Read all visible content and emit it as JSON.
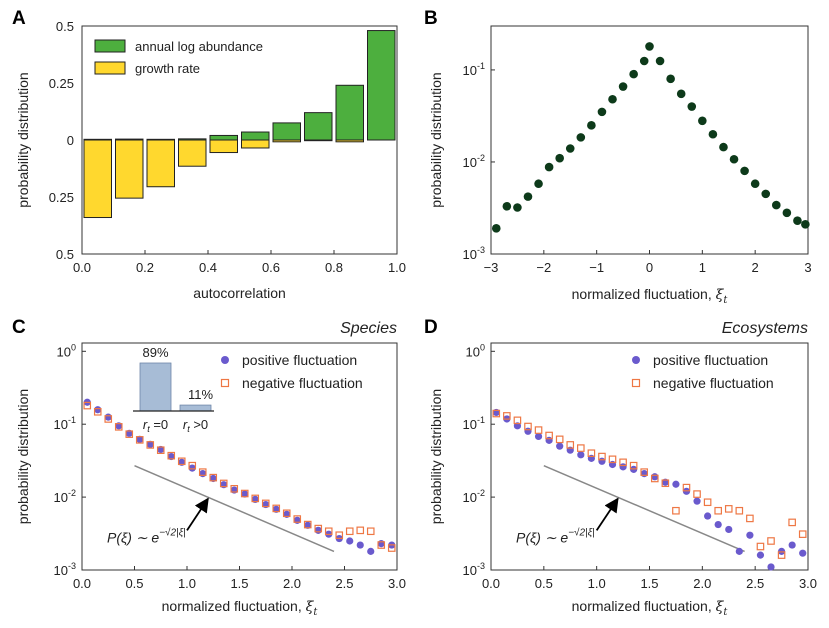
{
  "chart_data": [
    {
      "panel": "A",
      "type": "bar",
      "title": "",
      "xlabel": "autocorrelation",
      "ylabel": "probability distribution",
      "xlim": [
        0,
        1
      ],
      "ylim": [
        -0.5,
        0.5
      ],
      "xticks": [
        "0.0",
        "0.2",
        "0.4",
        "0.6",
        "0.8",
        "1.0"
      ],
      "yticks": [
        {
          "value": 0.5,
          "label": "0.5"
        },
        {
          "value": 0.25,
          "label": "0.25"
        },
        {
          "value": 0,
          "label": "0"
        },
        {
          "value": -0.25,
          "label": "0.25"
        },
        {
          "value": -0.5,
          "label": "0.5"
        }
      ],
      "bin_centers": [
        0.05,
        0.15,
        0.25,
        0.35,
        0.45,
        0.55,
        0.65,
        0.75,
        0.85,
        0.95
      ],
      "legend_position": "top-left",
      "series": [
        {
          "name": "annual log abundance",
          "color": "#4daf3e",
          "direction": "up",
          "values": [
            0.003,
            0.004,
            0.003,
            0.005,
            0.02,
            0.035,
            0.075,
            0.12,
            0.24,
            0.48
          ]
        },
        {
          "name": "growth rate",
          "color": "#ffd82e",
          "direction": "down",
          "values": [
            0.34,
            0.255,
            0.205,
            0.115,
            0.055,
            0.035,
            0.008,
            0.003,
            0.008,
            0.0
          ]
        }
      ]
    },
    {
      "panel": "B",
      "type": "scatter",
      "xlabel": "normalized fluctuation, ξ_t",
      "ylabel": "probability distribution",
      "yscale": "log",
      "xlim": [
        -3,
        3
      ],
      "ylim": [
        0.001,
        0.3
      ],
      "xticks": [
        "−3",
        "−2",
        "−1",
        "0",
        "1",
        "2",
        "3"
      ],
      "yticks": [
        {
          "value": 0.001,
          "base": "10",
          "exp": "-3"
        },
        {
          "value": 0.01,
          "base": "10",
          "exp": "-2"
        },
        {
          "value": 0.1,
          "base": "10",
          "exp": "-1"
        }
      ],
      "color": "#0d3a1a",
      "x": [
        -2.9,
        -2.7,
        -2.5,
        -2.3,
        -2.1,
        -1.9,
        -1.7,
        -1.5,
        -1.3,
        -1.1,
        -0.9,
        -0.7,
        -0.5,
        -0.3,
        -0.1,
        0.0,
        0.2,
        0.4,
        0.6,
        0.8,
        1.0,
        1.2,
        1.4,
        1.6,
        1.8,
        2.0,
        2.2,
        2.4,
        2.6,
        2.8,
        2.95
      ],
      "y": [
        0.0019,
        0.0033,
        0.0032,
        0.0042,
        0.0058,
        0.0088,
        0.011,
        0.014,
        0.0185,
        0.025,
        0.035,
        0.048,
        0.066,
        0.09,
        0.125,
        0.18,
        0.125,
        0.08,
        0.055,
        0.04,
        0.028,
        0.02,
        0.0145,
        0.0107,
        0.008,
        0.0058,
        0.0045,
        0.0034,
        0.0028,
        0.0023,
        0.0021
      ]
    },
    {
      "panel": "C",
      "type": "scatter",
      "title": "Species",
      "xlabel": "normalized fluctuation, ξ_t",
      "ylabel": "probability distribution",
      "yscale": "log",
      "xlim": [
        0,
        3
      ],
      "ylim": [
        0.001,
        1.3
      ],
      "xticks": [
        "0.0",
        "0.5",
        "1.0",
        "1.5",
        "2.0",
        "2.5",
        "3.0"
      ],
      "yticks": [
        {
          "value": 0.001,
          "base": "10",
          "exp": "-3"
        },
        {
          "value": 0.01,
          "base": "10",
          "exp": "-2"
        },
        {
          "value": 0.1,
          "base": "10",
          "exp": "-1"
        },
        {
          "value": 1,
          "base": "10",
          "exp": "0"
        }
      ],
      "legend_position": "top-right",
      "series": [
        {
          "name": "positive fluctuation",
          "color": "#6a5acd",
          "marker": "circle",
          "x": [
            0.05,
            0.15,
            0.25,
            0.35,
            0.45,
            0.55,
            0.65,
            0.75,
            0.85,
            0.95,
            1.05,
            1.15,
            1.25,
            1.35,
            1.45,
            1.55,
            1.65,
            1.75,
            1.85,
            1.95,
            2.05,
            2.15,
            2.25,
            2.35,
            2.45,
            2.55,
            2.65,
            2.75,
            2.85,
            2.95
          ],
          "y": [
            0.2,
            0.158,
            0.125,
            0.095,
            0.075,
            0.062,
            0.053,
            0.045,
            0.036,
            0.03,
            0.025,
            0.021,
            0.018,
            0.0148,
            0.0125,
            0.011,
            0.0093,
            0.0079,
            0.0068,
            0.0058,
            0.0048,
            0.0041,
            0.0035,
            0.0031,
            0.0027,
            0.0025,
            0.0022,
            0.0018,
            0.0023,
            0.0022
          ]
        },
        {
          "name": "negative fluctuation",
          "color": "#ee7744",
          "marker": "square",
          "x": [
            0.05,
            0.15,
            0.25,
            0.35,
            0.45,
            0.55,
            0.65,
            0.75,
            0.85,
            0.95,
            1.05,
            1.15,
            1.25,
            1.35,
            1.45,
            1.55,
            1.65,
            1.75,
            1.85,
            1.95,
            2.05,
            2.15,
            2.25,
            2.35,
            2.45,
            2.55,
            2.65,
            2.75,
            2.85,
            2.95
          ],
          "y": [
            0.18,
            0.148,
            0.118,
            0.092,
            0.073,
            0.061,
            0.052,
            0.044,
            0.037,
            0.031,
            0.027,
            0.022,
            0.0185,
            0.0154,
            0.013,
            0.0112,
            0.0096,
            0.0082,
            0.007,
            0.006,
            0.005,
            0.0042,
            0.0037,
            0.0034,
            0.003,
            0.0034,
            0.0035,
            0.0034,
            0.0022,
            0.002
          ]
        }
      ],
      "guide_line": {
        "x": [
          0.5,
          2.4
        ],
        "y": [
          0.027,
          0.0018
        ],
        "color": "#888888"
      },
      "annotation": {
        "base": "P(ξ) ∼ e",
        "exp": "−√2|ξ|",
        "arrow_from": [
          1.0,
          0.0035
        ],
        "arrow_to": [
          1.2,
          0.0095
        ]
      },
      "inset": {
        "categories": [
          "r_t = 0",
          "r_t > 0"
        ],
        "values": [
          89,
          11
        ],
        "labels": [
          "89%",
          "11%"
        ],
        "color": "#a7bcd6"
      }
    },
    {
      "panel": "D",
      "type": "scatter",
      "title": "Ecosystems",
      "xlabel": "normalized fluctuation, ξ_t",
      "ylabel": "probability distribution",
      "yscale": "log",
      "xlim": [
        0,
        3
      ],
      "ylim": [
        0.001,
        1.3
      ],
      "xticks": [
        "0.0",
        "0.5",
        "1.0",
        "1.5",
        "2.0",
        "2.5",
        "3.0"
      ],
      "yticks": [
        {
          "value": 0.001,
          "base": "10",
          "exp": "-3"
        },
        {
          "value": 0.01,
          "base": "10",
          "exp": "-2"
        },
        {
          "value": 0.1,
          "base": "10",
          "exp": "-1"
        },
        {
          "value": 1,
          "base": "10",
          "exp": "0"
        }
      ],
      "legend_position": "top-right",
      "series": [
        {
          "name": "positive fluctuation",
          "color": "#6a5acd",
          "marker": "circle",
          "x": [
            0.05,
            0.15,
            0.25,
            0.35,
            0.45,
            0.55,
            0.65,
            0.75,
            0.85,
            0.95,
            1.05,
            1.15,
            1.25,
            1.35,
            1.45,
            1.55,
            1.65,
            1.75,
            1.85,
            1.95,
            2.05,
            2.15,
            2.25,
            2.35,
            2.45,
            2.55,
            2.65,
            2.75,
            2.85,
            2.95
          ],
          "y": [
            0.145,
            0.118,
            0.095,
            0.08,
            0.068,
            0.06,
            0.05,
            0.044,
            0.038,
            0.034,
            0.031,
            0.028,
            0.026,
            0.024,
            0.021,
            0.019,
            0.016,
            0.015,
            0.012,
            0.0088,
            0.0055,
            0.0042,
            0.0036,
            0.0018,
            0.003,
            0.0016,
            0.0011,
            0.0018,
            0.0022,
            0.0017
          ]
        },
        {
          "name": "negative fluctuation",
          "color": "#ee7744",
          "marker": "square",
          "x": [
            0.05,
            0.15,
            0.25,
            0.35,
            0.45,
            0.55,
            0.65,
            0.75,
            0.85,
            0.95,
            1.05,
            1.15,
            1.25,
            1.35,
            1.45,
            1.55,
            1.65,
            1.75,
            1.85,
            1.95,
            2.05,
            2.15,
            2.25,
            2.35,
            2.45,
            2.55,
            2.65,
            2.75,
            2.85,
            2.95
          ],
          "y": [
            0.14,
            0.13,
            0.113,
            0.093,
            0.083,
            0.07,
            0.062,
            0.052,
            0.047,
            0.04,
            0.036,
            0.033,
            0.03,
            0.027,
            0.022,
            0.018,
            0.0155,
            0.0065,
            0.0135,
            0.011,
            0.0085,
            0.0065,
            0.0069,
            0.0065,
            0.0051,
            0.0021,
            0.0025,
            0.0016,
            0.0045,
            0.0031
          ]
        }
      ],
      "guide_line": {
        "x": [
          0.5,
          2.4
        ],
        "y": [
          0.027,
          0.0018
        ],
        "color": "#888888"
      },
      "annotation": {
        "base": "P(ξ) ∼ e",
        "exp": "−√2|ξ|",
        "arrow_from": [
          1.0,
          0.0035
        ],
        "arrow_to": [
          1.2,
          0.0095
        ]
      }
    }
  ]
}
